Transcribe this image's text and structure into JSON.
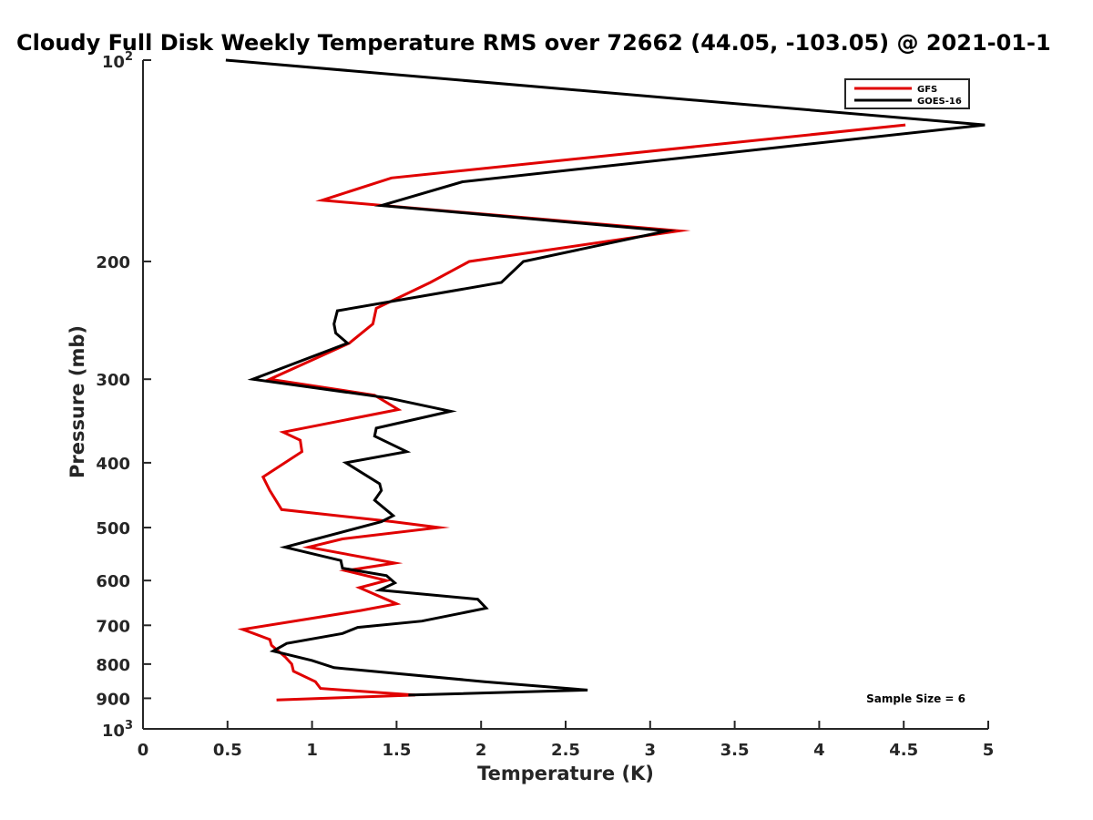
{
  "chart_data": {
    "type": "line",
    "title": "Cloudy Full Disk Weekly Temperature RMS over 72662 (44.05, -103.05) @ 2021-01-1",
    "xlabel": "Temperature (K)",
    "ylabel": "Pressure (mb)",
    "xlim": [
      0,
      5
    ],
    "ylim": [
      100,
      1000
    ],
    "y_scale": "log",
    "y_reversed": true,
    "grid": false,
    "legend_position": "top-right",
    "x_ticks": [
      "0",
      "0.5",
      "1",
      "1.5",
      "2",
      "2.5",
      "3",
      "3.5",
      "4",
      "4.5",
      "5"
    ],
    "y_ticks": [
      {
        "value": 100,
        "base": "10",
        "exp": "2"
      },
      {
        "value": 200,
        "label": "200"
      },
      {
        "value": 300,
        "label": "300"
      },
      {
        "value": 400,
        "label": "400"
      },
      {
        "value": 500,
        "label": "500"
      },
      {
        "value": 600,
        "label": "600"
      },
      {
        "value": 700,
        "label": "700"
      },
      {
        "value": 800,
        "label": "800"
      },
      {
        "value": 900,
        "label": "900"
      },
      {
        "value": 1000,
        "base": "10",
        "exp": "3"
      }
    ],
    "annotation": "Sample Size = 6",
    "series": [
      {
        "name": "GFS",
        "color": "#e00000",
        "points": [
          [
            4.51,
            125
          ],
          [
            1.47,
            150
          ],
          [
            1.06,
            162
          ],
          [
            3.17,
            180
          ],
          [
            1.93,
            200
          ],
          [
            1.7,
            215
          ],
          [
            1.38,
            235
          ],
          [
            1.36,
            248
          ],
          [
            1.22,
            265
          ],
          [
            0.75,
            300
          ],
          [
            1.37,
            317
          ],
          [
            1.51,
            333
          ],
          [
            0.83,
            360
          ],
          [
            0.93,
            370
          ],
          [
            0.94,
            385
          ],
          [
            0.71,
            420
          ],
          [
            0.75,
            440
          ],
          [
            0.82,
            470
          ],
          [
            1.48,
            490
          ],
          [
            1.75,
            500
          ],
          [
            1.18,
            520
          ],
          [
            0.98,
            535
          ],
          [
            1.49,
            565
          ],
          [
            1.2,
            580
          ],
          [
            1.44,
            600
          ],
          [
            1.28,
            615
          ],
          [
            1.5,
            650
          ],
          [
            1.29,
            665
          ],
          [
            0.59,
            710
          ],
          [
            0.75,
            735
          ],
          [
            0.76,
            750
          ],
          [
            0.84,
            780
          ],
          [
            0.88,
            800
          ],
          [
            0.89,
            820
          ],
          [
            1.02,
            850
          ],
          [
            1.05,
            870
          ],
          [
            1.61,
            890
          ],
          [
            0.79,
            905
          ]
        ]
      },
      {
        "name": "GOES-16",
        "color": "#000000",
        "points": [
          [
            0.49,
            100
          ],
          [
            4.98,
            125
          ],
          [
            1.89,
            152
          ],
          [
            1.41,
            165
          ],
          [
            3.1,
            180
          ],
          [
            2.25,
            200
          ],
          [
            2.12,
            215
          ],
          [
            1.15,
            237
          ],
          [
            1.13,
            248
          ],
          [
            1.14,
            256
          ],
          [
            1.21,
            265
          ],
          [
            0.65,
            300
          ],
          [
            1.45,
            320
          ],
          [
            1.82,
            335
          ],
          [
            1.38,
            355
          ],
          [
            1.37,
            365
          ],
          [
            1.56,
            385
          ],
          [
            1.2,
            400
          ],
          [
            1.4,
            430
          ],
          [
            1.41,
            440
          ],
          [
            1.37,
            455
          ],
          [
            1.48,
            480
          ],
          [
            1.41,
            490
          ],
          [
            0.84,
            535
          ],
          [
            1.17,
            560
          ],
          [
            1.18,
            575
          ],
          [
            1.44,
            590
          ],
          [
            1.49,
            605
          ],
          [
            1.4,
            620
          ],
          [
            1.98,
            640
          ],
          [
            2.03,
            660
          ],
          [
            1.65,
            690
          ],
          [
            1.27,
            705
          ],
          [
            1.18,
            720
          ],
          [
            0.85,
            745
          ],
          [
            0.77,
            765
          ],
          [
            1.0,
            790
          ],
          [
            1.13,
            810
          ],
          [
            2.02,
            850
          ],
          [
            2.63,
            875
          ],
          [
            1.57,
            890
          ]
        ]
      }
    ]
  }
}
